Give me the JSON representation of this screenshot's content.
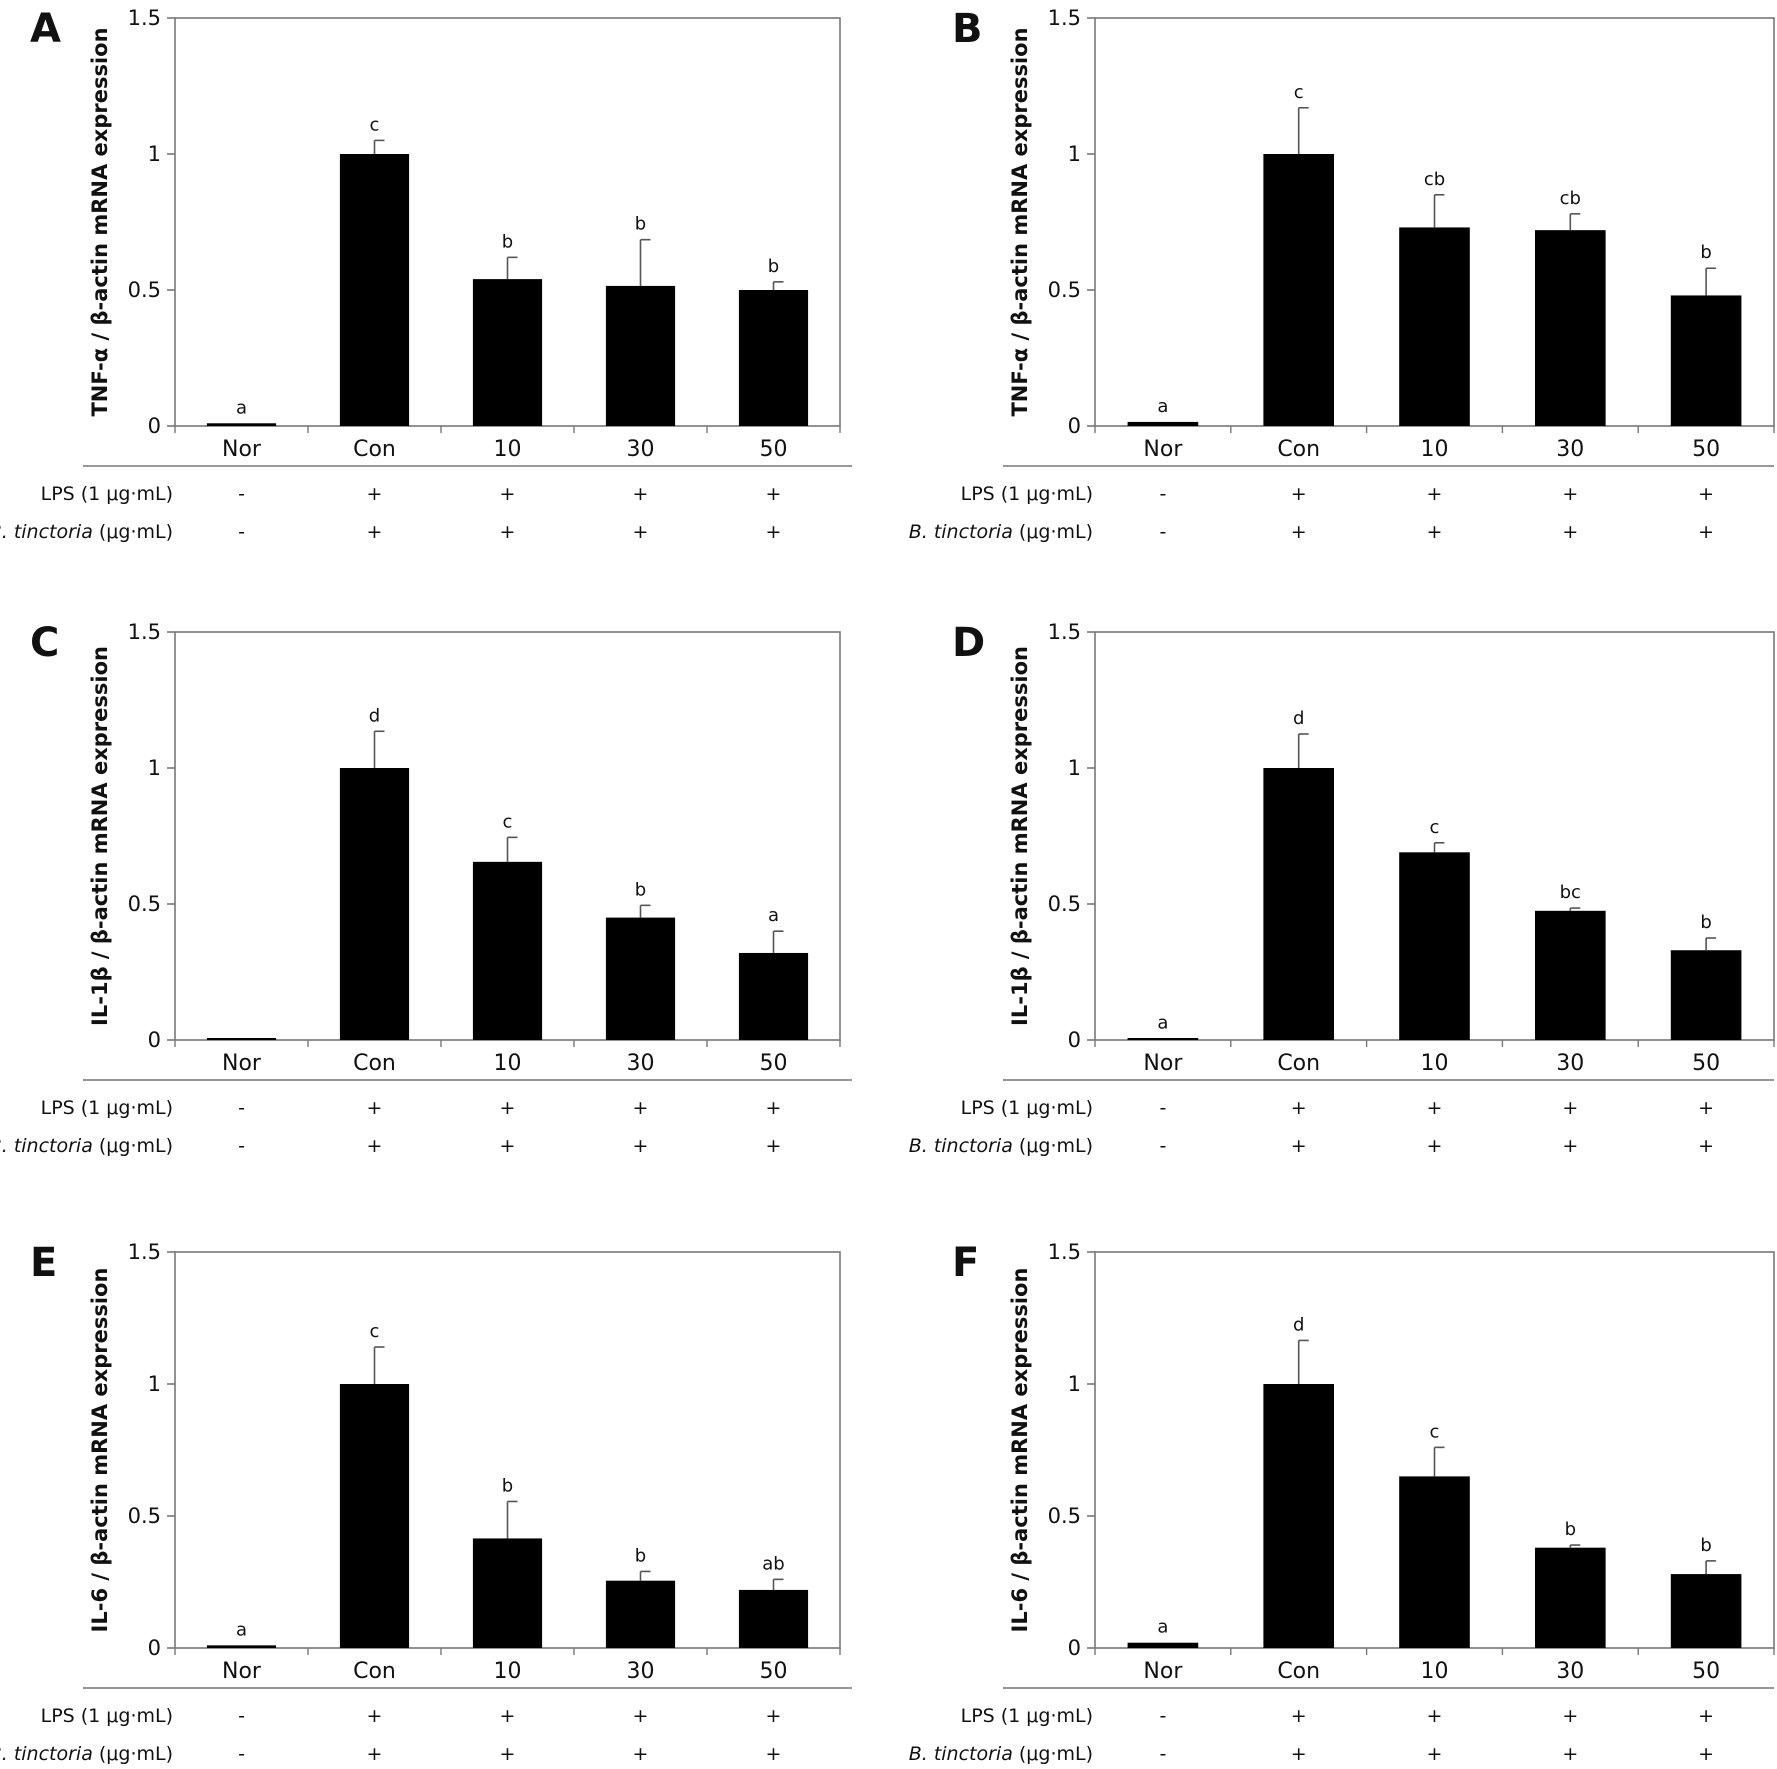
{
  "chart_data": [
    {
      "panel": "A",
      "type": "bar",
      "ylabel": "TNF-α / β-actin mRNA expression",
      "ylim": [
        0,
        1.5
      ],
      "yticks": [
        "0",
        "0.5",
        "1",
        "1.5"
      ],
      "categories": [
        "Nor",
        "Con",
        "10",
        "30",
        "50"
      ],
      "values": [
        0.01,
        1.0,
        0.54,
        0.515,
        0.5
      ],
      "errors": [
        0.0,
        0.05,
        0.08,
        0.17,
        0.03
      ],
      "letters": [
        "a",
        "c",
        "b",
        "b",
        "b"
      ],
      "conditions": [
        {
          "label_italic": "",
          "label": "LPS (1 μg·mL)",
          "signs": [
            "-",
            "+",
            "+",
            "+",
            "+"
          ]
        },
        {
          "label_italic": "B. tinctoria",
          "label": " (μg·mL)",
          "signs": [
            "-",
            "+",
            "+",
            "+",
            "+"
          ]
        }
      ],
      "grid": false
    },
    {
      "panel": "B",
      "type": "bar",
      "ylabel": "TNF-α / β-actin mRNA expression",
      "ylim": [
        0,
        1.5
      ],
      "yticks": [
        "0",
        "0.5",
        "1",
        "1.5"
      ],
      "categories": [
        "Nor",
        "Con",
        "10",
        "30",
        "50"
      ],
      "values": [
        0.015,
        1.0,
        0.73,
        0.72,
        0.48
      ],
      "errors": [
        0.0,
        0.17,
        0.12,
        0.06,
        0.1
      ],
      "letters": [
        "a",
        "c",
        "cb",
        "cb",
        "b"
      ],
      "conditions": [
        {
          "label_italic": "",
          "label": "LPS (1 μg·mL)",
          "signs": [
            "-",
            "+",
            "+",
            "+",
            "+"
          ]
        },
        {
          "label_italic": "B. tinctoria",
          "label": " (μg·mL)",
          "signs": [
            "-",
            "+",
            "+",
            "+",
            "+"
          ]
        }
      ],
      "grid": false
    },
    {
      "panel": "C",
      "type": "bar",
      "ylabel": "IL-1β / β-actin mRNA expression",
      "ylim": [
        0,
        1.5
      ],
      "yticks": [
        "0",
        "0.5",
        "1",
        "1.5"
      ],
      "categories": [
        "Nor",
        "Con",
        "10",
        "30",
        "50"
      ],
      "values": [
        0.0,
        1.0,
        0.655,
        0.45,
        0.32
      ],
      "errors": [
        0.0,
        0.135,
        0.09,
        0.045,
        0.08
      ],
      "letters": [
        "",
        "d",
        "c",
        "b",
        "a"
      ],
      "conditions": [
        {
          "label_italic": "",
          "label": "LPS (1 μg·mL)",
          "signs": [
            "-",
            "+",
            "+",
            "+",
            "+"
          ]
        },
        {
          "label_italic": "B. tinctoria",
          "label": " (μg·mL)",
          "signs": [
            "-",
            "+",
            "+",
            "+",
            "+"
          ]
        }
      ],
      "grid": false
    },
    {
      "panel": "D",
      "type": "bar",
      "ylabel": "IL-1β / β-actin mRNA expression",
      "ylim": [
        0,
        1.5
      ],
      "yticks": [
        "0",
        "0.5",
        "1",
        "1.5"
      ],
      "categories": [
        "Nor",
        "Con",
        "10",
        "30",
        "50"
      ],
      "values": [
        0.005,
        1.0,
        0.69,
        0.475,
        0.33
      ],
      "errors": [
        0.0,
        0.125,
        0.035,
        0.01,
        0.045
      ],
      "letters": [
        "a",
        "d",
        "c",
        "bc",
        "b"
      ],
      "conditions": [
        {
          "label_italic": "",
          "label": "LPS (1 μg·mL)",
          "signs": [
            "-",
            "+",
            "+",
            "+",
            "+"
          ]
        },
        {
          "label_italic": "B. tinctoria",
          "label": " (μg·mL)",
          "signs": [
            "-",
            "+",
            "+",
            "+",
            "+"
          ]
        }
      ],
      "grid": false
    },
    {
      "panel": "E",
      "type": "bar",
      "ylabel": "IL-6 / β-actin mRNA expression",
      "ylim": [
        0,
        1.5
      ],
      "yticks": [
        "0",
        "0.5",
        "1",
        "1.5"
      ],
      "categories": [
        "Nor",
        "Con",
        "10",
        "30",
        "50"
      ],
      "values": [
        0.01,
        1.0,
        0.415,
        0.255,
        0.22
      ],
      "errors": [
        0.0,
        0.14,
        0.14,
        0.035,
        0.04
      ],
      "letters": [
        "a",
        "c",
        "b",
        "b",
        "ab"
      ],
      "conditions": [
        {
          "label_italic": "",
          "label": "LPS (1 μg·mL)",
          "signs": [
            "-",
            "+",
            "+",
            "+",
            "+"
          ]
        },
        {
          "label_italic": "B. tinctoria",
          "label": " (μg·mL)",
          "signs": [
            "-",
            "+",
            "+",
            "+",
            "+"
          ]
        }
      ],
      "grid": false
    },
    {
      "panel": "F",
      "type": "bar",
      "ylabel": "IL-6 / β-actin mRNA expression",
      "ylim": [
        0,
        1.5
      ],
      "yticks": [
        "0",
        "0.5",
        "1",
        "1.5"
      ],
      "categories": [
        "Nor",
        "Con",
        "10",
        "30",
        "50"
      ],
      "values": [
        0.02,
        1.0,
        0.65,
        0.38,
        0.28
      ],
      "errors": [
        0.0,
        0.165,
        0.11,
        0.01,
        0.05
      ],
      "letters": [
        "a",
        "d",
        "c",
        "b",
        "b"
      ],
      "conditions": [
        {
          "label_italic": "",
          "label": "LPS (1 μg·mL)",
          "signs": [
            "-",
            "+",
            "+",
            "+",
            "+"
          ]
        },
        {
          "label_italic": "B. tinctoria",
          "label": " (μg·mL)",
          "signs": [
            "-",
            "+",
            "+",
            "+",
            "+"
          ]
        }
      ],
      "grid": false
    }
  ]
}
